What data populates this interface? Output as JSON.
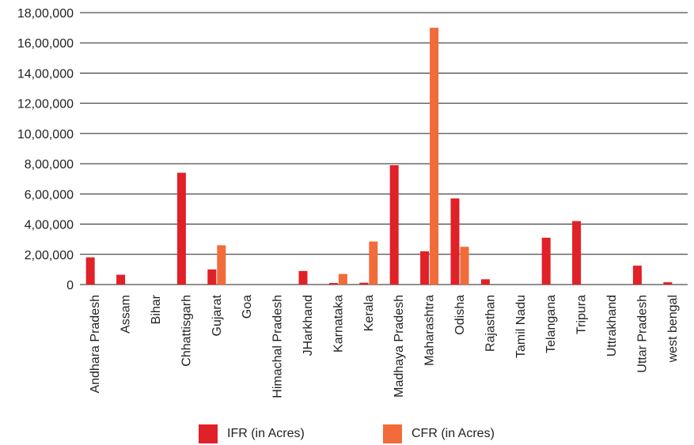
{
  "colors": {
    "ifr": "#e02127",
    "cfr": "#f26b3a",
    "grid": "#231f20"
  },
  "chart_data": {
    "type": "bar",
    "title": "",
    "xlabel": "",
    "ylabel": "",
    "ylim": [
      0,
      1800000
    ],
    "grid": true,
    "legend_position": "bottom",
    "y_ticks": [
      0,
      200000,
      400000,
      600000,
      800000,
      1000000,
      1200000,
      1400000,
      1600000,
      1800000
    ],
    "y_tick_labels": [
      "0",
      "2,00,000",
      "4,00,000",
      "6,00,000",
      "8,00,000",
      "10,00,000",
      "12,00,000",
      "14,00,000",
      "16,00,000",
      "18,00,000"
    ],
    "categories": [
      "Andhara Pradesh",
      "Assam",
      "Bihar",
      "Chhattisgarh",
      "Gujarat",
      "Goa",
      "Himachal Pradesh",
      "JHarkhand",
      "Karnataka",
      "Kerala",
      "Madhaya Pradesh",
      "Maharashtra",
      "Odisha",
      "Rajasthan",
      "Tamil Nadu",
      "Telangana",
      "Tripura",
      "Uttrakhand",
      "Uttar Pradesh",
      "west bengal"
    ],
    "series": [
      {
        "name": "IFR (in Acres)",
        "values": [
          180000,
          65000,
          0,
          740000,
          100000,
          0,
          0,
          90000,
          10000,
          12000,
          790000,
          220000,
          570000,
          35000,
          0,
          310000,
          420000,
          0,
          125000,
          15000
        ]
      },
      {
        "name": "CFR (in Acres)",
        "values": [
          0,
          0,
          0,
          0,
          260000,
          0,
          0,
          0,
          70000,
          285000,
          0,
          1700000,
          250000,
          0,
          0,
          0,
          0,
          0,
          0,
          0
        ]
      }
    ]
  }
}
